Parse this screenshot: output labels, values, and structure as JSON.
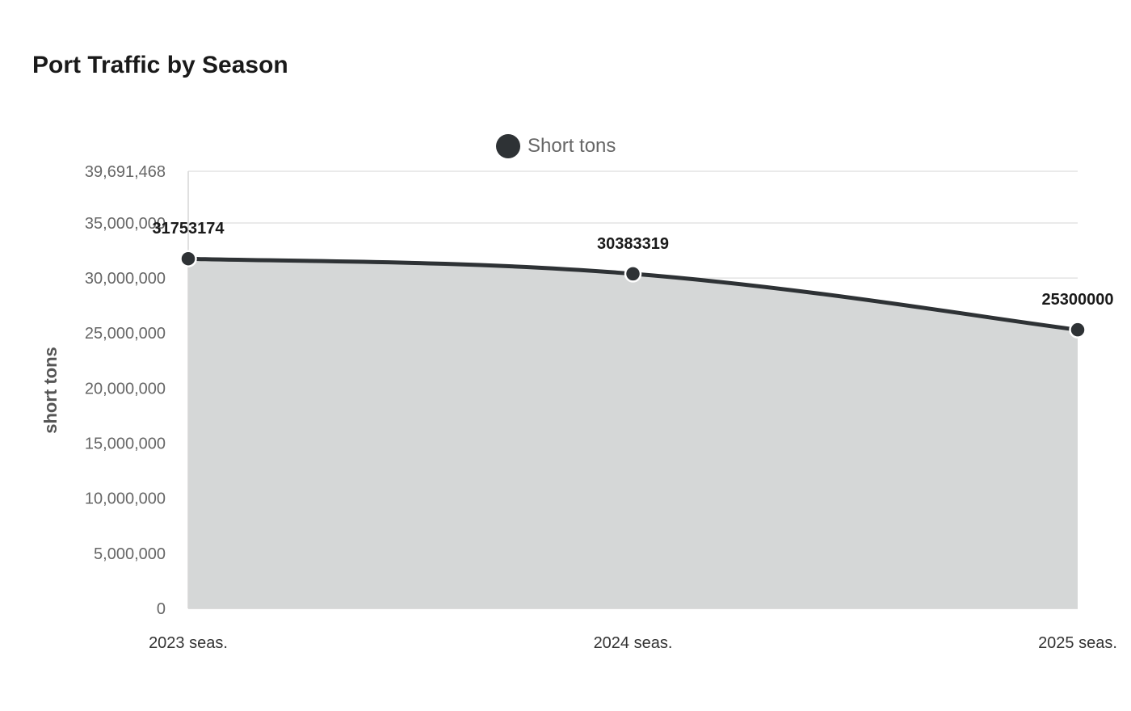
{
  "chart_data": {
    "type": "area",
    "title": "Port Traffic by Season",
    "xlabel": "",
    "ylabel": "short tons",
    "categories": [
      "2023 seas.",
      "2024 seas.",
      "2025 seas."
    ],
    "series": [
      {
        "name": "Short tons",
        "values": [
          31753174,
          30383319,
          25300000
        ],
        "data_labels": [
          "31753174",
          "30383319",
          "25300000"
        ]
      }
    ],
    "ylim": [
      0,
      39691468
    ],
    "yticks": [
      0,
      5000000,
      10000000,
      15000000,
      20000000,
      25000000,
      30000000,
      35000000,
      39691468
    ],
    "ytick_labels": [
      "0",
      "5,000,000",
      "10,000,000",
      "15,000,000",
      "20,000,000",
      "25,000,000",
      "30,000,000",
      "35,000,000",
      "39,691,468"
    ],
    "legend_position": "top-center",
    "grid": true,
    "colors": {
      "line": "#2e3235",
      "fill": "#d5d7d7",
      "marker_stroke": "#ffffff"
    }
  }
}
